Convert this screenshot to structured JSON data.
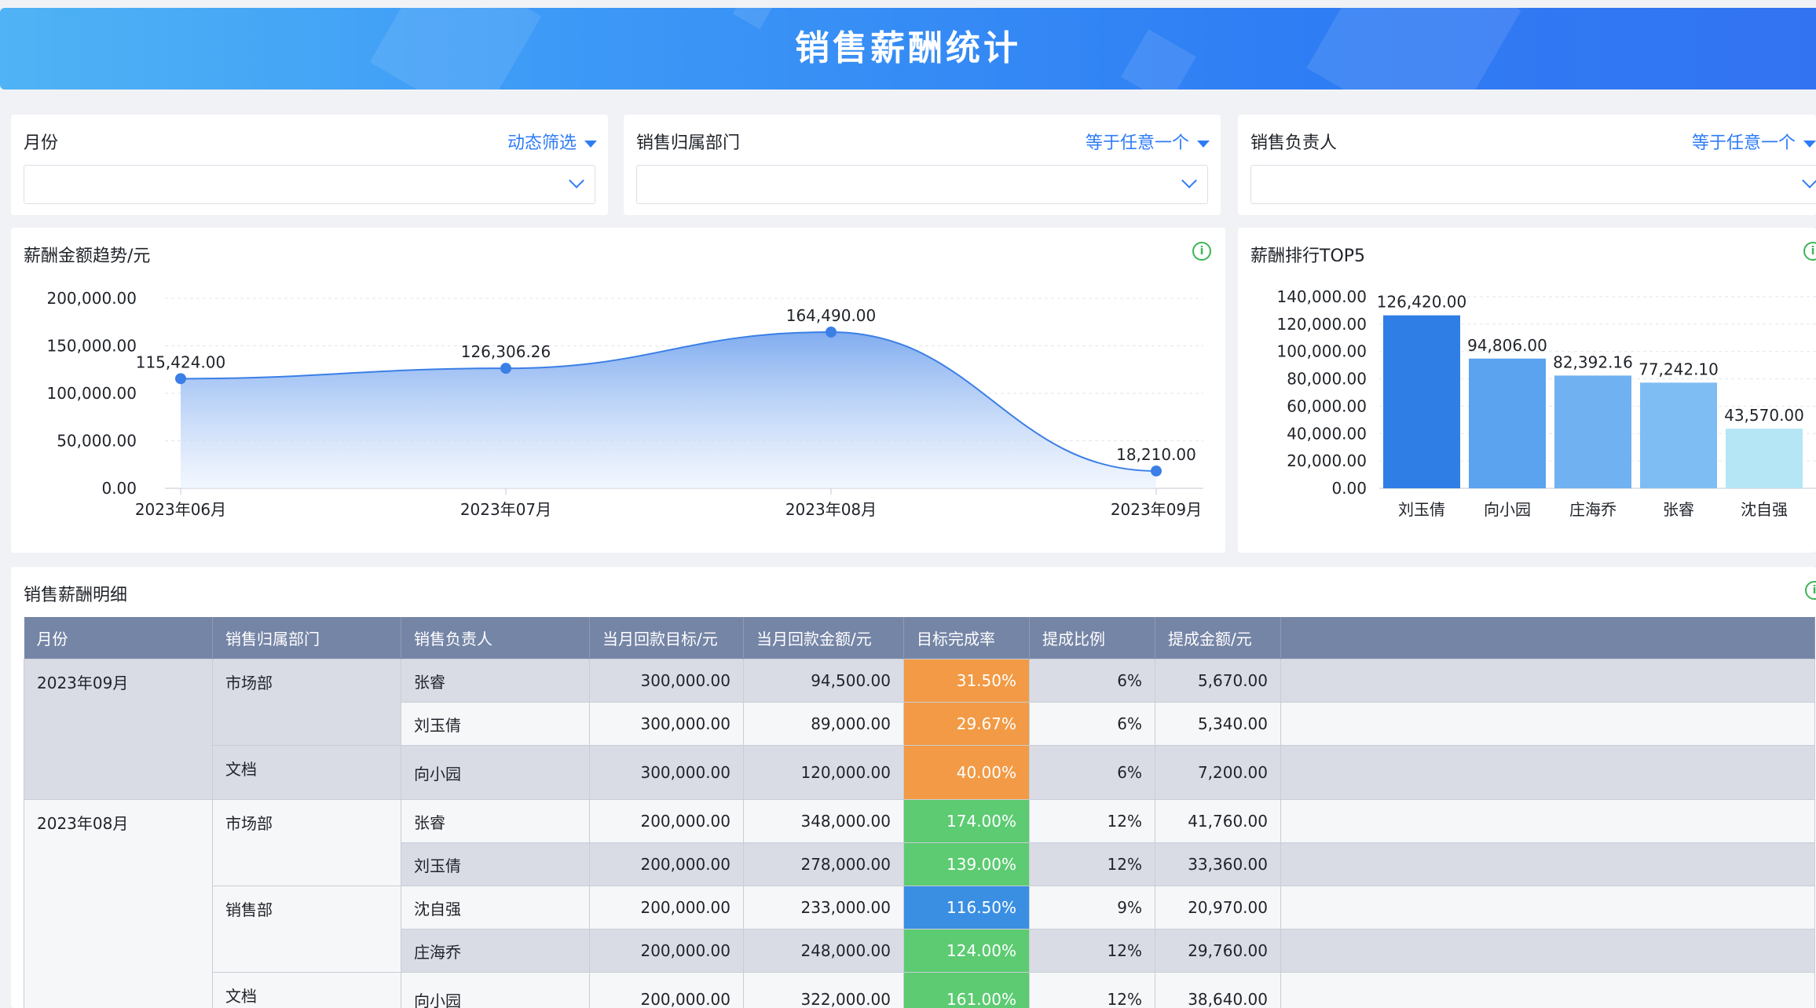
{
  "header": {
    "title": "销售薪酬统计"
  },
  "filters": [
    {
      "label": "月份",
      "mode": "动态筛选"
    },
    {
      "label": "销售归属部门",
      "mode": "等于任意一个"
    },
    {
      "label": "销售负责人",
      "mode": "等于任意一个"
    }
  ],
  "trend": {
    "title": "薪酬金额趋势/元",
    "info_icon": "info-icon",
    "chart_data": {
      "type": "area",
      "title": "薪酬金额趋势/元",
      "x": [
        "2023年06月",
        "2023年07月",
        "2023年08月",
        "2023年09月"
      ],
      "values": [
        115424.0,
        126306.26,
        164490.0,
        18210.0
      ],
      "value_labels": [
        "115,424.00",
        "126,306.26",
        "164,490.00",
        "18,210.00"
      ],
      "ylim": [
        0,
        200000
      ],
      "yticks": [
        "0.00",
        "50,000.00",
        "100,000.00",
        "150,000.00",
        "200,000.00"
      ],
      "grid": true,
      "color": "#3b7fe6"
    }
  },
  "top5": {
    "title": "薪酬排行TOP5",
    "info_icon": "info-icon",
    "chart_data": {
      "type": "bar",
      "title": "薪酬排行TOP5",
      "categories": [
        "刘玉倩",
        "向小园",
        "庄海乔",
        "张睿",
        "沈自强"
      ],
      "values": [
        126420.0,
        94806.0,
        82392.16,
        77242.1,
        43570.0
      ],
      "value_labels": [
        "126,420.00",
        "94,806.00",
        "82,392.16",
        "77,242.10",
        "43,570.00"
      ],
      "ylim": [
        0,
        140000
      ],
      "yticks": [
        "0.00",
        "20,000.00",
        "40,000.00",
        "60,000.00",
        "80,000.00",
        "100,000.00",
        "120,000.00",
        "140,000.00"
      ],
      "grid": true,
      "colors": [
        "#2f7ee6",
        "#5ba2ef",
        "#6fb1f1",
        "#7ebdf4",
        "#b4e6f6"
      ]
    }
  },
  "detail": {
    "title": "销售薪酬明细",
    "headers": [
      "月份",
      "销售归属部门",
      "销售负责人",
      "当月回款目标/元",
      "当月回款金额/元",
      "目标完成率",
      "提成比例",
      "提成金额/元"
    ],
    "rows": [
      {
        "month": "2023年09月",
        "dept": "市场部",
        "person": "张睿",
        "target": "300,000.00",
        "amount": "94,500.00",
        "rate": "31.50%",
        "rate_color": "#f29a45",
        "ratio": "6%",
        "commission": "5,670.00"
      },
      {
        "month": "",
        "dept": "",
        "person": "刘玉倩",
        "target": "300,000.00",
        "amount": "89,000.00",
        "rate": "29.67%",
        "rate_color": "#f29a45",
        "ratio": "6%",
        "commission": "5,340.00"
      },
      {
        "month": "",
        "dept": "文档",
        "person": "向小园",
        "target": "300,000.00",
        "amount": "120,000.00",
        "rate": "40.00%",
        "rate_color": "#f29a45",
        "ratio": "6%",
        "commission": "7,200.00"
      },
      {
        "month": "2023年08月",
        "dept": "市场部",
        "person": "张睿",
        "target": "200,000.00",
        "amount": "348,000.00",
        "rate": "174.00%",
        "rate_color": "#5ccb72",
        "ratio": "12%",
        "commission": "41,760.00"
      },
      {
        "month": "",
        "dept": "",
        "person": "刘玉倩",
        "target": "200,000.00",
        "amount": "278,000.00",
        "rate": "139.00%",
        "rate_color": "#5ccb72",
        "ratio": "12%",
        "commission": "33,360.00"
      },
      {
        "month": "",
        "dept": "销售部",
        "person": "沈自强",
        "target": "200,000.00",
        "amount": "233,000.00",
        "rate": "116.50%",
        "rate_color": "#3a8fe3",
        "ratio": "9%",
        "commission": "20,970.00"
      },
      {
        "month": "",
        "dept": "",
        "person": "庄海乔",
        "target": "200,000.00",
        "amount": "248,000.00",
        "rate": "124.00%",
        "rate_color": "#5ccb72",
        "ratio": "12%",
        "commission": "29,760.00"
      },
      {
        "month": "",
        "dept": "文档",
        "person": "向小园",
        "target": "200,000.00",
        "amount": "322,000.00",
        "rate": "161.00%",
        "rate_color": "#5ccb72",
        "ratio": "12%",
        "commission": "38,640.00"
      }
    ]
  }
}
